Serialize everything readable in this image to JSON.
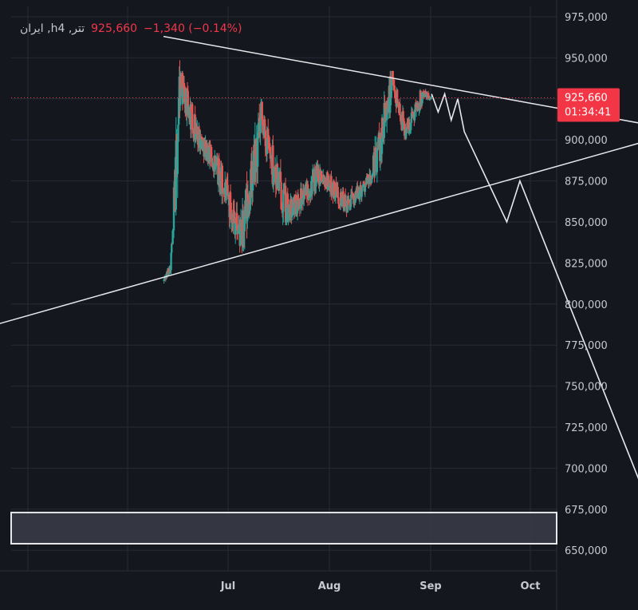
{
  "header": {
    "symbol": "ایران ,hتتر, 4",
    "last_price": "925,660",
    "change": "−1,340 (−0.14%)"
  },
  "price_tag": {
    "price": "925,660",
    "countdown": "01:34:41"
  },
  "colors": {
    "background": "#15171f",
    "grid": "#262a35",
    "up": "#26a69a",
    "down": "#ef5350",
    "drawing": "#e8e8ec",
    "price_tag": "#f23645"
  },
  "chart_data": {
    "type": "candlestick",
    "y_tick_labels": [
      "975,000",
      "950,000",
      "925,000",
      "900,000",
      "875,000",
      "850,000",
      "825,000",
      "800,000",
      "775,000",
      "750,000",
      "725,000",
      "700,000",
      "675,000",
      "650,000"
    ],
    "x_tick_labels": [
      "Jul",
      "Aug",
      "Sep",
      "Oct"
    ],
    "ylim": [
      645000,
      980000
    ],
    "last_price": 925660,
    "price_segments": [
      {
        "start_day": 0,
        "end_day": 2,
        "start": 814000,
        "end": 822000,
        "min": 812000,
        "max": 826000
      },
      {
        "start_day": 2,
        "end_day": 3,
        "start": 822000,
        "end": 845000,
        "min": 818000,
        "max": 848000
      },
      {
        "start_day": 3,
        "end_day": 5,
        "start": 845000,
        "end": 935000,
        "min": 840000,
        "max": 962000
      },
      {
        "start_day": 5,
        "end_day": 10,
        "start": 935000,
        "end": 905000,
        "min": 885000,
        "max": 942000
      },
      {
        "start_day": 10,
        "end_day": 16,
        "start": 905000,
        "end": 884000,
        "min": 872000,
        "max": 912000
      },
      {
        "start_day": 16,
        "end_day": 24,
        "start": 884000,
        "end": 840000,
        "min": 831000,
        "max": 892000
      },
      {
        "start_day": 24,
        "end_day": 30,
        "start": 840000,
        "end": 910000,
        "min": 832000,
        "max": 925000
      },
      {
        "start_day": 30,
        "end_day": 38,
        "start": 910000,
        "end": 855000,
        "min": 848000,
        "max": 915000
      },
      {
        "start_day": 38,
        "end_day": 48,
        "start": 855000,
        "end": 880000,
        "min": 848000,
        "max": 888000
      },
      {
        "start_day": 48,
        "end_day": 56,
        "start": 880000,
        "end": 860000,
        "min": 850000,
        "max": 884000
      },
      {
        "start_day": 56,
        "end_day": 64,
        "start": 860000,
        "end": 878000,
        "min": 856000,
        "max": 886000
      },
      {
        "start_day": 64,
        "end_day": 70,
        "start": 878000,
        "end": 935000,
        "min": 874000,
        "max": 942000
      },
      {
        "start_day": 70,
        "end_day": 74,
        "start": 935000,
        "end": 905000,
        "min": 900000,
        "max": 938000
      },
      {
        "start_day": 74,
        "end_day": 79,
        "start": 905000,
        "end": 928000,
        "min": 900000,
        "max": 934000
      },
      {
        "start_day": 79,
        "end_day": 82,
        "start": 928000,
        "end": 925660,
        "min": 918000,
        "max": 933000
      }
    ],
    "projection_path": [
      {
        "day": 82,
        "price": 928000
      },
      {
        "day": 84,
        "price": 917000
      },
      {
        "day": 86,
        "price": 928000
      },
      {
        "day": 88,
        "price": 912000
      },
      {
        "day": 90,
        "price": 925000
      },
      {
        "day": 92,
        "price": 905000
      },
      {
        "day": 105,
        "price": 850000
      },
      {
        "day": 109,
        "price": 875000
      },
      {
        "day": 149,
        "price": 675000
      }
    ],
    "trendlines": [
      {
        "name": "upper",
        "start": {
          "day": 0,
          "price": 963000
        },
        "end": {
          "day": 149,
          "price": 909000
        }
      },
      {
        "name": "lower",
        "start": {
          "day": -61,
          "price": 782000
        },
        "end": {
          "day": 149,
          "price": 900000
        }
      }
    ],
    "zone": {
      "top": 673000,
      "bottom": 654000
    }
  }
}
